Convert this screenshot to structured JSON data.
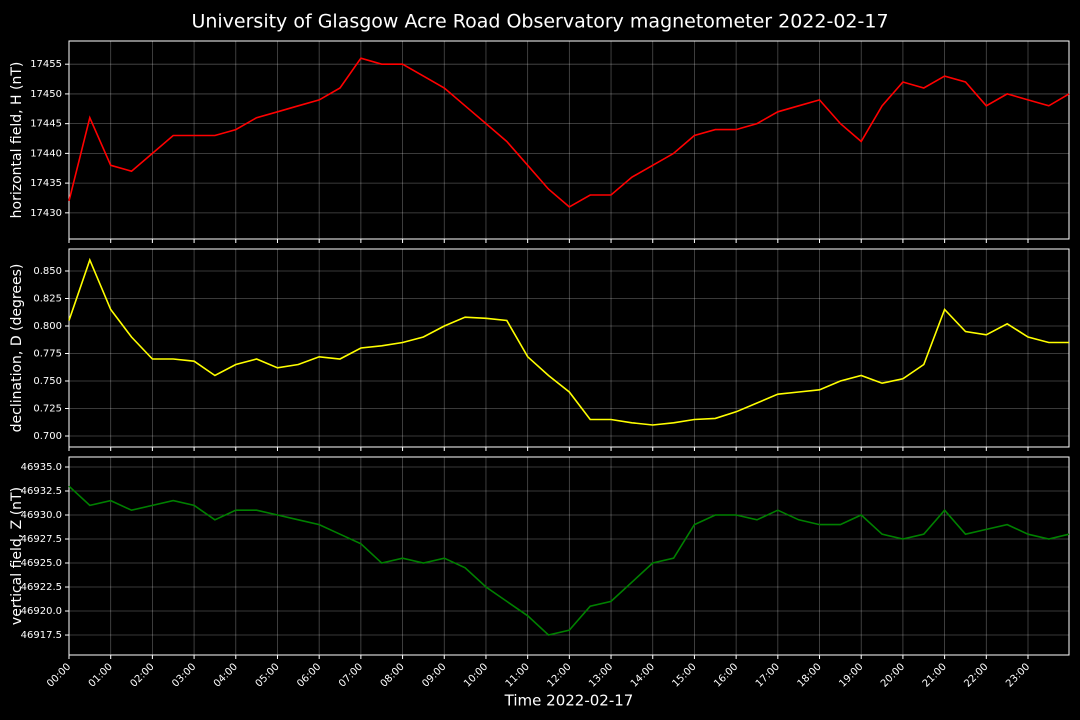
{
  "title": "University of Glasgow Acre Road Observatory magnetometer 2022-02-17",
  "x_axis": {
    "label": "Time 2022-02-17",
    "xlim": [
      "00:00",
      "23:59"
    ],
    "xticks": [
      "00:00",
      "01:00",
      "02:00",
      "03:00",
      "04:00",
      "05:00",
      "06:00",
      "07:00",
      "08:00",
      "09:00",
      "10:00",
      "11:00",
      "12:00",
      "13:00",
      "14:00",
      "15:00",
      "16:00",
      "17:00",
      "18:00",
      "19:00",
      "20:00",
      "21:00",
      "22:00",
      "23:00"
    ]
  },
  "chart_data": [
    {
      "type": "line",
      "ylabel": "horizontal field, H (nT)",
      "ylim": [
        17425.6,
        17458.9
      ],
      "yticks": [
        17430,
        17435,
        17440,
        17445,
        17450,
        17455
      ],
      "grid": true,
      "x": [
        "00:00",
        "00:30",
        "01:00",
        "01:30",
        "02:00",
        "02:30",
        "03:00",
        "03:30",
        "04:00",
        "04:30",
        "05:00",
        "05:30",
        "06:00",
        "06:30",
        "07:00",
        "07:30",
        "08:00",
        "08:30",
        "09:00",
        "09:30",
        "10:00",
        "10:30",
        "11:00",
        "11:30",
        "12:00",
        "12:30",
        "13:00",
        "13:30",
        "14:00",
        "14:30",
        "15:00",
        "15:30",
        "16:00",
        "16:30",
        "17:00",
        "17:30",
        "18:00",
        "18:30",
        "19:00",
        "19:30",
        "20:00",
        "20:30",
        "21:00",
        "21:30",
        "22:00",
        "22:30",
        "23:00",
        "23:30",
        "23:59"
      ],
      "series": [
        {
          "color": "#ff0000",
          "values": [
            17432,
            17446,
            17438,
            17437,
            17440,
            17443,
            17443,
            17443,
            17444,
            17446,
            17447,
            17448,
            17449,
            17451,
            17456,
            17455,
            17455,
            17453,
            17451,
            17448,
            17445,
            17442,
            17438,
            17434,
            17431,
            17433,
            17433,
            17436,
            17438,
            17440,
            17443,
            17444,
            17444,
            17445,
            17447,
            17448,
            17449,
            17445,
            17442,
            17448,
            17452,
            17451,
            17453,
            17452,
            17448,
            17450,
            17449,
            17448,
            17450
          ]
        }
      ]
    },
    {
      "type": "line",
      "ylabel": "declination, D (degrees)",
      "ylim": [
        0.69,
        0.87
      ],
      "yticks": [
        {
          "value": 0.7,
          "label": "0.700"
        },
        0.725,
        {
          "value": 0.75,
          "label": "0.750"
        },
        0.775,
        {
          "value": 0.8,
          "label": "0.800"
        },
        0.825,
        {
          "value": 0.85,
          "label": "0.850"
        }
      ],
      "grid": true,
      "x": [
        "00:00",
        "00:30",
        "01:00",
        "01:30",
        "02:00",
        "02:30",
        "03:00",
        "03:30",
        "04:00",
        "04:30",
        "05:00",
        "05:30",
        "06:00",
        "06:30",
        "07:00",
        "07:30",
        "08:00",
        "08:30",
        "09:00",
        "09:30",
        "10:00",
        "10:30",
        "11:00",
        "11:30",
        "12:00",
        "12:30",
        "13:00",
        "13:30",
        "14:00",
        "14:30",
        "15:00",
        "15:30",
        "16:00",
        "16:30",
        "17:00",
        "17:30",
        "18:00",
        "18:30",
        "19:00",
        "19:30",
        "20:00",
        "20:30",
        "21:00",
        "21:30",
        "22:00",
        "22:30",
        "23:00",
        "23:30",
        "23:59"
      ],
      "series": [
        {
          "color": "#ffff00",
          "values": [
            0.805,
            0.86,
            0.815,
            0.79,
            0.77,
            0.77,
            0.768,
            0.755,
            0.765,
            0.77,
            0.762,
            0.765,
            0.772,
            0.77,
            0.78,
            0.782,
            0.785,
            0.79,
            0.8,
            0.808,
            0.807,
            0.805,
            0.772,
            0.755,
            0.74,
            0.715,
            0.715,
            0.712,
            0.71,
            0.712,
            0.715,
            0.716,
            0.722,
            0.73,
            0.738,
            0.74,
            0.742,
            0.75,
            0.755,
            0.748,
            0.752,
            0.765,
            0.815,
            0.795,
            0.792,
            0.802,
            0.79,
            0.785,
            0.785
          ]
        }
      ]
    },
    {
      "type": "line",
      "ylabel": "vertical field, Z (nT)",
      "ylim": [
        46915.42,
        46936.04
      ],
      "yticks": [
        46917.5,
        {
          "value": 46920,
          "label": "46920.0"
        },
        46922.5,
        {
          "value": 46925,
          "label": "46925.0"
        },
        46927.5,
        {
          "value": 46930,
          "label": "46930.0"
        },
        46932.5,
        {
          "value": 46935,
          "label": "46935.0"
        }
      ],
      "grid": true,
      "x": [
        "00:00",
        "00:30",
        "01:00",
        "01:30",
        "02:00",
        "02:30",
        "03:00",
        "03:30",
        "04:00",
        "04:30",
        "05:00",
        "05:30",
        "06:00",
        "06:30",
        "07:00",
        "07:30",
        "08:00",
        "08:30",
        "09:00",
        "09:30",
        "10:00",
        "10:30",
        "11:00",
        "11:30",
        "12:00",
        "12:30",
        "13:00",
        "13:30",
        "14:00",
        "14:30",
        "15:00",
        "15:30",
        "16:00",
        "16:30",
        "17:00",
        "17:30",
        "18:00",
        "18:30",
        "19:00",
        "19:30",
        "20:00",
        "20:30",
        "21:00",
        "21:30",
        "22:00",
        "22:30",
        "23:00",
        "23:30",
        "23:59"
      ],
      "series": [
        {
          "color": "#008000",
          "values": [
            46933,
            46931,
            46931.5,
            46930.5,
            46931,
            46931.5,
            46931,
            46929.5,
            46930.5,
            46930.5,
            46930,
            46929.5,
            46929,
            46928,
            46927,
            46925,
            46925.5,
            46925,
            46925.5,
            46924.5,
            46922.5,
            46921,
            46919.5,
            46917.5,
            46918,
            46920.5,
            46921,
            46923,
            46925,
            46925.5,
            46929,
            46930,
            46930,
            46929.5,
            46930.5,
            46929.5,
            46929,
            46929,
            46930,
            46928,
            46927.5,
            46928,
            46930.5,
            46928,
            46928.5,
            46929,
            46928,
            46927.5,
            46928
          ]
        }
      ]
    }
  ]
}
